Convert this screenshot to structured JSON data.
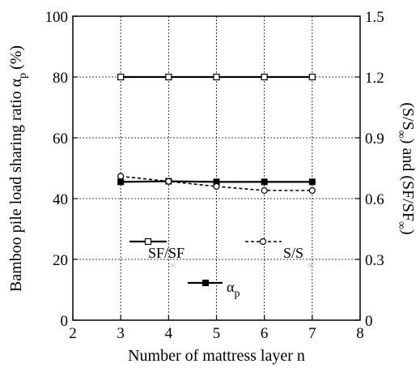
{
  "chart_data": {
    "type": "line",
    "xlabel": "Number of mattress layer n",
    "ylabel_left": "Bamboo pile load sharing ratio α",
    "ylabel_left_sub": "p",
    "ylabel_left_unit": "(%)",
    "ylabel_right": "(S/S",
    "ylabel_right_sub": "∞",
    "ylabel_right_mid": ") and (SF/SF",
    "ylabel_right_sub2": "∞",
    "ylabel_right_end": ")",
    "xlim": [
      2,
      8
    ],
    "ylim_left": [
      0,
      100
    ],
    "ylim_right": [
      0,
      1.5
    ],
    "x_ticks": [
      "2",
      "3",
      "4",
      "5",
      "6",
      "7",
      "8"
    ],
    "y_left_ticks": [
      "0",
      "20",
      "40",
      "60",
      "80",
      "100"
    ],
    "y_right_ticks": [
      "0",
      "0.3",
      "0.6",
      "0.9",
      "1.2",
      "1.5"
    ],
    "grid": true,
    "x": [
      3,
      4,
      5,
      6,
      7
    ],
    "series": [
      {
        "name": "SF/SF∞",
        "axis": "right",
        "line": "solid",
        "marker": "open-square",
        "values": [
          1.2,
          1.2,
          1.2,
          1.2,
          1.2
        ]
      },
      {
        "name": "α_p",
        "axis": "left",
        "line": "solid",
        "marker": "filled-square",
        "values": [
          45.5,
          45.7,
          45.5,
          45.5,
          45.5
        ]
      },
      {
        "name": "S/S∞",
        "axis": "right",
        "line": "dashed",
        "marker": "open-circle",
        "values": [
          0.71,
          0.685,
          0.66,
          0.64,
          0.64
        ]
      }
    ],
    "legend": {
      "sf_label": "SF/SF",
      "sf_sub": "∞",
      "ss_label": "S/S",
      "ss_sub": "∞",
      "alpha_label": "α",
      "alpha_sub": "p"
    }
  }
}
